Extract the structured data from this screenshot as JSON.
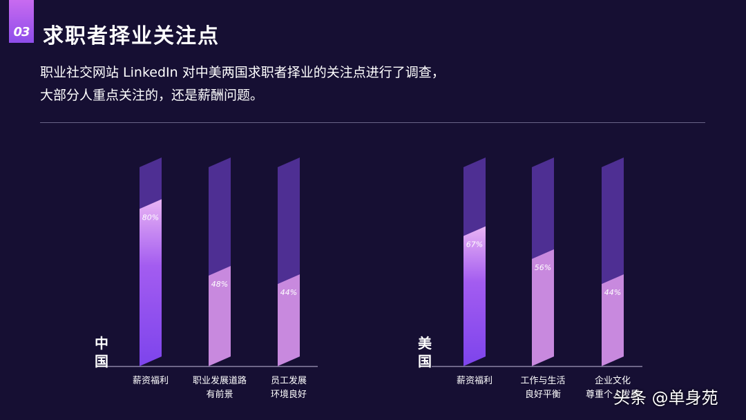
{
  "header": {
    "section_number": "03",
    "title": "求职者择业关注点",
    "description_lines": [
      "职业社交网站 LinkedIn 对中美两国求职者择业的关注点进行了调查，",
      "大部分人重点关注的，还是薪酬问题。"
    ]
  },
  "watermark": "头条 @单身苑",
  "colors": {
    "background": "#160f33",
    "track": "#4e2f93",
    "fill_top_bar": "#e3a8f2",
    "fill_bottom_bar": "#8a4cec",
    "fill_other": "#c889de"
  },
  "chart_data": [
    {
      "type": "bar",
      "title": "",
      "group_label": "中国",
      "categories": [
        [
          "薪资福利"
        ],
        [
          "职业发展道路",
          "有前景"
        ],
        [
          "员工发展",
          "环境良好"
        ]
      ],
      "series": [
        {
          "values": [
            80,
            48,
            44
          ]
        }
      ],
      "value_suffix": "%",
      "ylim": [
        0,
        100
      ],
      "grid": false,
      "legend": "none"
    },
    {
      "type": "bar",
      "title": "",
      "group_label": "美国",
      "categories": [
        [
          "薪资福利"
        ],
        [
          "工作与生活",
          "良好平衡"
        ],
        [
          "企业文化",
          "尊重个人发展"
        ]
      ],
      "series": [
        {
          "values": [
            67,
            56,
            44
          ]
        }
      ],
      "value_suffix": "%",
      "ylim": [
        0,
        100
      ],
      "grid": false,
      "legend": "none"
    }
  ]
}
